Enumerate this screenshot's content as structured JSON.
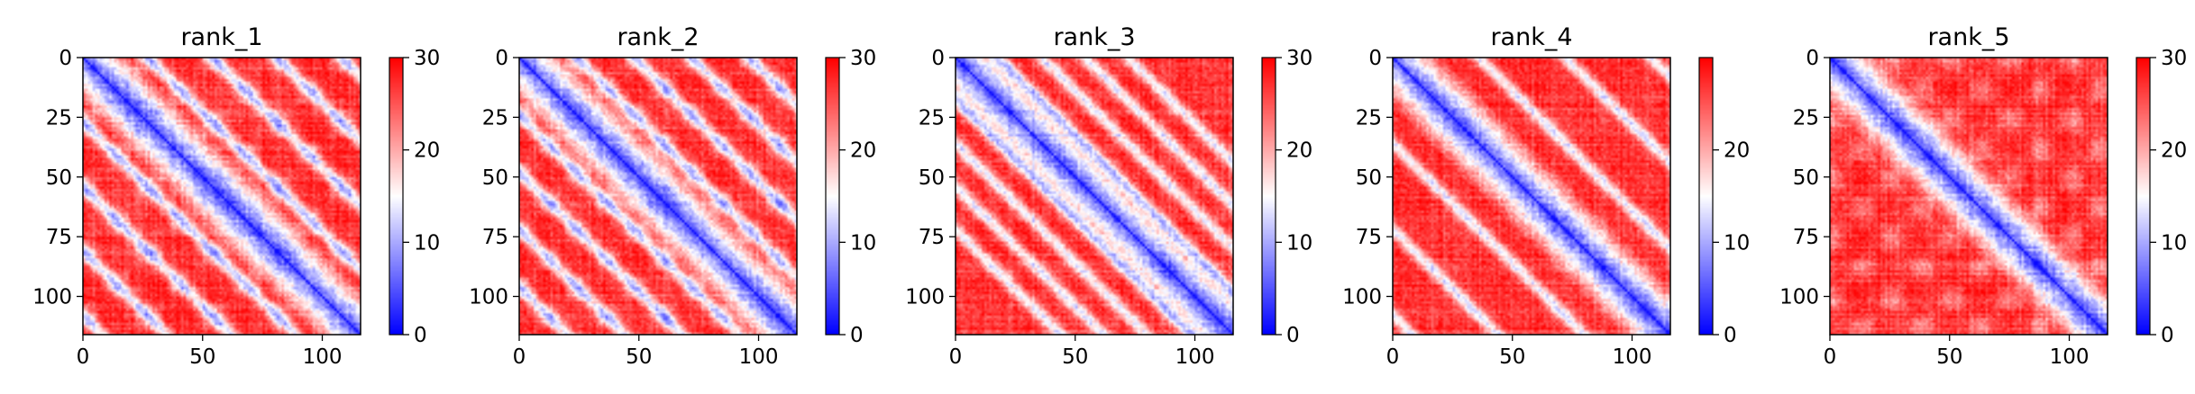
{
  "chart_data": [
    {
      "type": "heatmap",
      "title": "rank_1",
      "n": 116,
      "x_ticks": [
        0,
        50,
        100
      ],
      "y_ticks": [
        0,
        25,
        50,
        75,
        100
      ],
      "colorbar": {
        "min": 0,
        "max": 30,
        "ticks": [
          0,
          10,
          20,
          30
        ],
        "colormap": "bwr",
        "colors": [
          "#0000ff",
          "#ffffff",
          "#ff0000"
        ]
      },
      "pattern": {
        "stripe_offsets": [
          27,
          54,
          81,
          108
        ],
        "periodic_grid": true,
        "period": 27
      }
    },
    {
      "type": "heatmap",
      "title": "rank_2",
      "n": 116,
      "x_ticks": [
        0,
        50,
        100
      ],
      "y_ticks": [
        0,
        25,
        50,
        75,
        100
      ],
      "colorbar": {
        "min": 0,
        "max": 30,
        "ticks": [
          0,
          10,
          20,
          30
        ],
        "colormap": "bwr",
        "colors": [
          "#0000ff",
          "#ffffff",
          "#ff0000"
        ]
      },
      "pattern": {
        "stripe_offsets": [
          24,
          48,
          72,
          96
        ],
        "periodic_grid": true,
        "period": 24
      }
    },
    {
      "type": "heatmap",
      "title": "rank_3",
      "n": 116,
      "x_ticks": [
        0,
        50,
        100
      ],
      "y_ticks": [
        0,
        25,
        50,
        75,
        100
      ],
      "colorbar": {
        "min": 0,
        "max": 30,
        "ticks": [
          0,
          10,
          20,
          30
        ],
        "colormap": "bwr",
        "colors": [
          "#0000ff",
          "#ffffff",
          "#ff0000"
        ]
      },
      "pattern": {
        "stripe_offsets": [
          18,
          36,
          54,
          72
        ],
        "periodic_grid": false,
        "period": 18
      }
    },
    {
      "type": "heatmap",
      "title": "rank_4",
      "n": 116,
      "x_ticks": [
        0,
        50,
        100
      ],
      "y_ticks": [
        0,
        25,
        50,
        75,
        100
      ],
      "colorbar": {
        "min": 0,
        "max": 30,
        "ticks": [
          0,
          10,
          20
        ],
        "colormap": "bwr",
        "colors": [
          "#0000ff",
          "#ffffff",
          "#ff0000"
        ]
      },
      "pattern": {
        "stripe_offsets": [
          36,
          72,
          108
        ],
        "periodic_grid": false,
        "period": 36
      }
    },
    {
      "type": "heatmap",
      "title": "rank_5",
      "n": 116,
      "x_ticks": [
        0,
        50,
        100
      ],
      "y_ticks": [
        0,
        25,
        50,
        75,
        100
      ],
      "colorbar": {
        "min": 0,
        "max": 30,
        "ticks": [
          0,
          10,
          20,
          30
        ],
        "colormap": "bwr",
        "colors": [
          "#0000ff",
          "#ffffff",
          "#ff0000"
        ]
      },
      "pattern": {
        "stripe_offsets": [],
        "periodic_grid": true,
        "period": 25
      }
    }
  ]
}
